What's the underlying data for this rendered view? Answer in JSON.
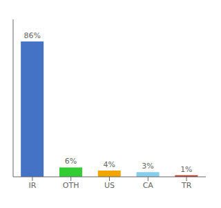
{
  "chart_data": {
    "type": "bar",
    "categories": [
      "IR",
      "OTH",
      "US",
      "CA",
      "TR"
    ],
    "values": [
      86,
      6,
      4,
      3,
      1
    ],
    "value_labels": [
      "86%",
      "6%",
      "4%",
      "3%",
      "1%"
    ],
    "colors": [
      "#4472C4",
      "#33CC33",
      "#F0A500",
      "#87CEEB",
      "#C0392B"
    ],
    "ylim": [
      0,
      100
    ],
    "tick_labels": "x",
    "data_labels": true
  }
}
